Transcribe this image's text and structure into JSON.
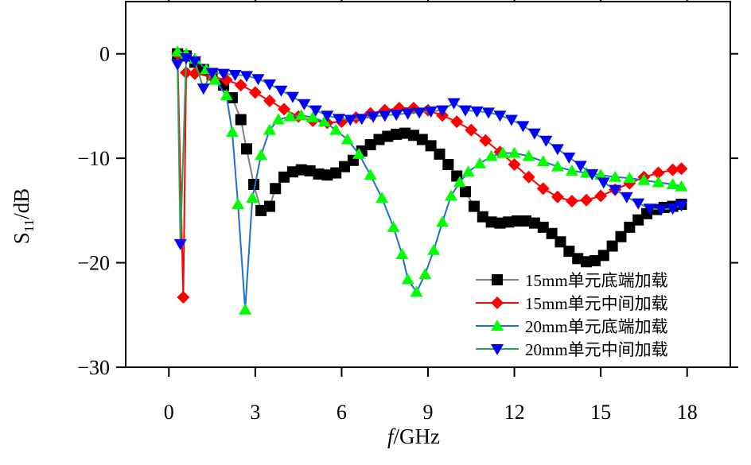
{
  "chart_data": {
    "type": "line",
    "xlabel": [
      "f",
      "/GHz"
    ],
    "ylabel": [
      "S",
      "11",
      "/dB"
    ],
    "xlim": [
      -1.5,
      19.5
    ],
    "ylim": [
      -30,
      5
    ],
    "xticks": [
      0,
      3,
      6,
      9,
      12,
      15,
      18
    ],
    "yticks": [
      0,
      {
        "value": -10,
        "label": "−10"
      },
      {
        "value": -20,
        "label": "−20"
      },
      {
        "value": -30,
        "label": "−30"
      }
    ],
    "legend": "lower right",
    "series": [
      {
        "name": "15mm单元底端加载",
        "color": "#808080",
        "marker_color": "#000000",
        "marker": "square",
        "x": [
          0.3,
          0.6,
          0.9,
          1.2,
          1.5,
          1.9,
          2.2,
          2.5,
          2.7,
          2.95,
          3.2,
          3.5,
          3.7,
          4.0,
          4.3,
          4.6,
          4.9,
          5.2,
          5.5,
          5.8,
          6.1,
          6.4,
          6.7,
          7.0,
          7.3,
          7.6,
          7.9,
          8.2,
          8.5,
          8.8,
          9.1,
          9.4,
          9.7,
          10.0,
          10.3,
          10.6,
          10.9,
          11.2,
          11.5,
          11.8,
          12.1,
          12.4,
          12.7,
          13.0,
          13.3,
          13.6,
          13.9,
          14.2,
          14.5,
          14.8,
          15.1,
          15.4,
          15.7,
          16.0,
          16.3,
          16.6,
          16.9,
          17.2,
          17.5,
          17.8
        ],
        "values": [
          0,
          -0.2,
          -0.8,
          -1.5,
          -2,
          -3,
          -4.2,
          -6.3,
          -9.1,
          -12.5,
          -15,
          -14.6,
          -12.9,
          -11.8,
          -11.3,
          -11.1,
          -11.2,
          -11.5,
          -11.6,
          -11.4,
          -10.8,
          -10.2,
          -9.3,
          -8.7,
          -8.2,
          -7.9,
          -7.7,
          -7.6,
          -7.8,
          -8.2,
          -8.8,
          -9.6,
          -10.6,
          -11.7,
          -13.2,
          -14.6,
          -15.6,
          -16.1,
          -16.2,
          -16.1,
          -16,
          -16,
          -16.2,
          -16.6,
          -17.2,
          -18,
          -18.9,
          -19.6,
          -19.9,
          -19.8,
          -19.3,
          -18.4,
          -17.5,
          -16.6,
          -15.9,
          -15.3,
          -14.9,
          -14.7,
          -14.6,
          -14.4
        ]
      },
      {
        "name": "15mm单元中间加载",
        "color": "#ff0000",
        "marker_color": "#ff0000",
        "marker": "diamond",
        "x": [
          0.3,
          0.5,
          0.6,
          0.9,
          1.5,
          2.0,
          2.5,
          3.0,
          3.5,
          4.0,
          4.5,
          5.0,
          5.5,
          6.0,
          6.5,
          7.0,
          7.5,
          8.0,
          8.5,
          9.0,
          9.5,
          10.0,
          10.5,
          11.0,
          11.5,
          12.0,
          12.5,
          13.0,
          13.5,
          14.0,
          14.5,
          15.0,
          15.5,
          16.0,
          16.5,
          17.0,
          17.5,
          17.8
        ],
        "values": [
          0,
          -23.3,
          -1.8,
          -1.9,
          -2.2,
          -2.5,
          -3,
          -3.7,
          -4.5,
          -5.3,
          -6,
          -6.4,
          -6.6,
          -6.5,
          -6.1,
          -5.7,
          -5.4,
          -5.2,
          -5.2,
          -5.4,
          -5.9,
          -6.5,
          -7.3,
          -8.3,
          -9.4,
          -10.6,
          -11.8,
          -12.9,
          -13.7,
          -14.1,
          -14,
          -13.6,
          -13,
          -12.4,
          -11.8,
          -11.4,
          -11.1,
          -11
        ]
      },
      {
        "name": "20mm单元底端加载",
        "color": "#1f6fd0",
        "marker_color": "#00ff00",
        "marker": "triangle-up",
        "x": [
          0.3,
          0.6,
          0.9,
          1.3,
          1.6,
          2.0,
          2.2,
          2.4,
          2.65,
          2.9,
          3.2,
          3.5,
          3.8,
          4.2,
          4.6,
          5.0,
          5.4,
          5.8,
          6.2,
          6.6,
          7.0,
          7.4,
          7.8,
          8.1,
          8.3,
          8.6,
          8.9,
          9.2,
          9.5,
          9.8,
          10.1,
          10.4,
          10.8,
          11.2,
          11.6,
          12.0,
          12.5,
          13.0,
          13.5,
          14.0,
          14.5,
          15.0,
          15.5,
          16.0,
          16.5,
          17.0,
          17.5,
          17.8
        ],
        "values": [
          0.2,
          0,
          -0.5,
          -1.5,
          -2.5,
          -4,
          -7.5,
          -14.4,
          -24.5,
          -13.8,
          -9.7,
          -7.3,
          -6.3,
          -6,
          -5.9,
          -6.1,
          -6.5,
          -7.3,
          -8.2,
          -9.6,
          -11.6,
          -13.8,
          -16.6,
          -19.2,
          -21.6,
          -22.8,
          -21.1,
          -18.8,
          -16.1,
          -13.6,
          -12.3,
          -11.3,
          -10.5,
          -9.8,
          -9.5,
          -9.5,
          -9.8,
          -10.3,
          -10.8,
          -11.2,
          -11.4,
          -11.6,
          -11.8,
          -11.9,
          -12.1,
          -12.3,
          -12.5,
          -12.7
        ]
      },
      {
        "name": "20mm单元中间加载",
        "color": "#2ca05a",
        "marker_color": "#0000ff",
        "marker": "triangle-down",
        "x": [
          0.3,
          0.4,
          0.6,
          0.9,
          1.2,
          1.5,
          1.9,
          2.3,
          2.7,
          3.1,
          3.5,
          3.9,
          4.3,
          4.7,
          5.1,
          5.5,
          5.9,
          6.3,
          6.7,
          7.1,
          7.5,
          7.9,
          8.3,
          8.7,
          9.1,
          9.5,
          9.9,
          10.3,
          10.7,
          11.1,
          11.5,
          11.9,
          12.3,
          12.7,
          13.1,
          13.5,
          13.9,
          14.3,
          14.7,
          15.1,
          15.5,
          15.9,
          16.3,
          16.7,
          17.1,
          17.5,
          17.8
        ],
        "values": [
          -1,
          -18.2,
          -0.4,
          -0.7,
          -3.3,
          -1.8,
          -1.9,
          -2,
          -2.1,
          -2.4,
          -2.9,
          -3.5,
          -4.1,
          -4.8,
          -5.4,
          -5.9,
          -6.2,
          -6.3,
          -6.2,
          -6,
          -5.9,
          -5.8,
          -5.7,
          -5.6,
          -5.5,
          -5.4,
          -4.7,
          -5.4,
          -5.5,
          -5.6,
          -5.9,
          -6.3,
          -6.9,
          -7.6,
          -8.3,
          -9.1,
          -9.9,
          -10.7,
          -11.5,
          -12.3,
          -13,
          -13.7,
          -14.3,
          -14.8,
          -14.9,
          -14.8,
          -14.5
        ]
      }
    ]
  }
}
